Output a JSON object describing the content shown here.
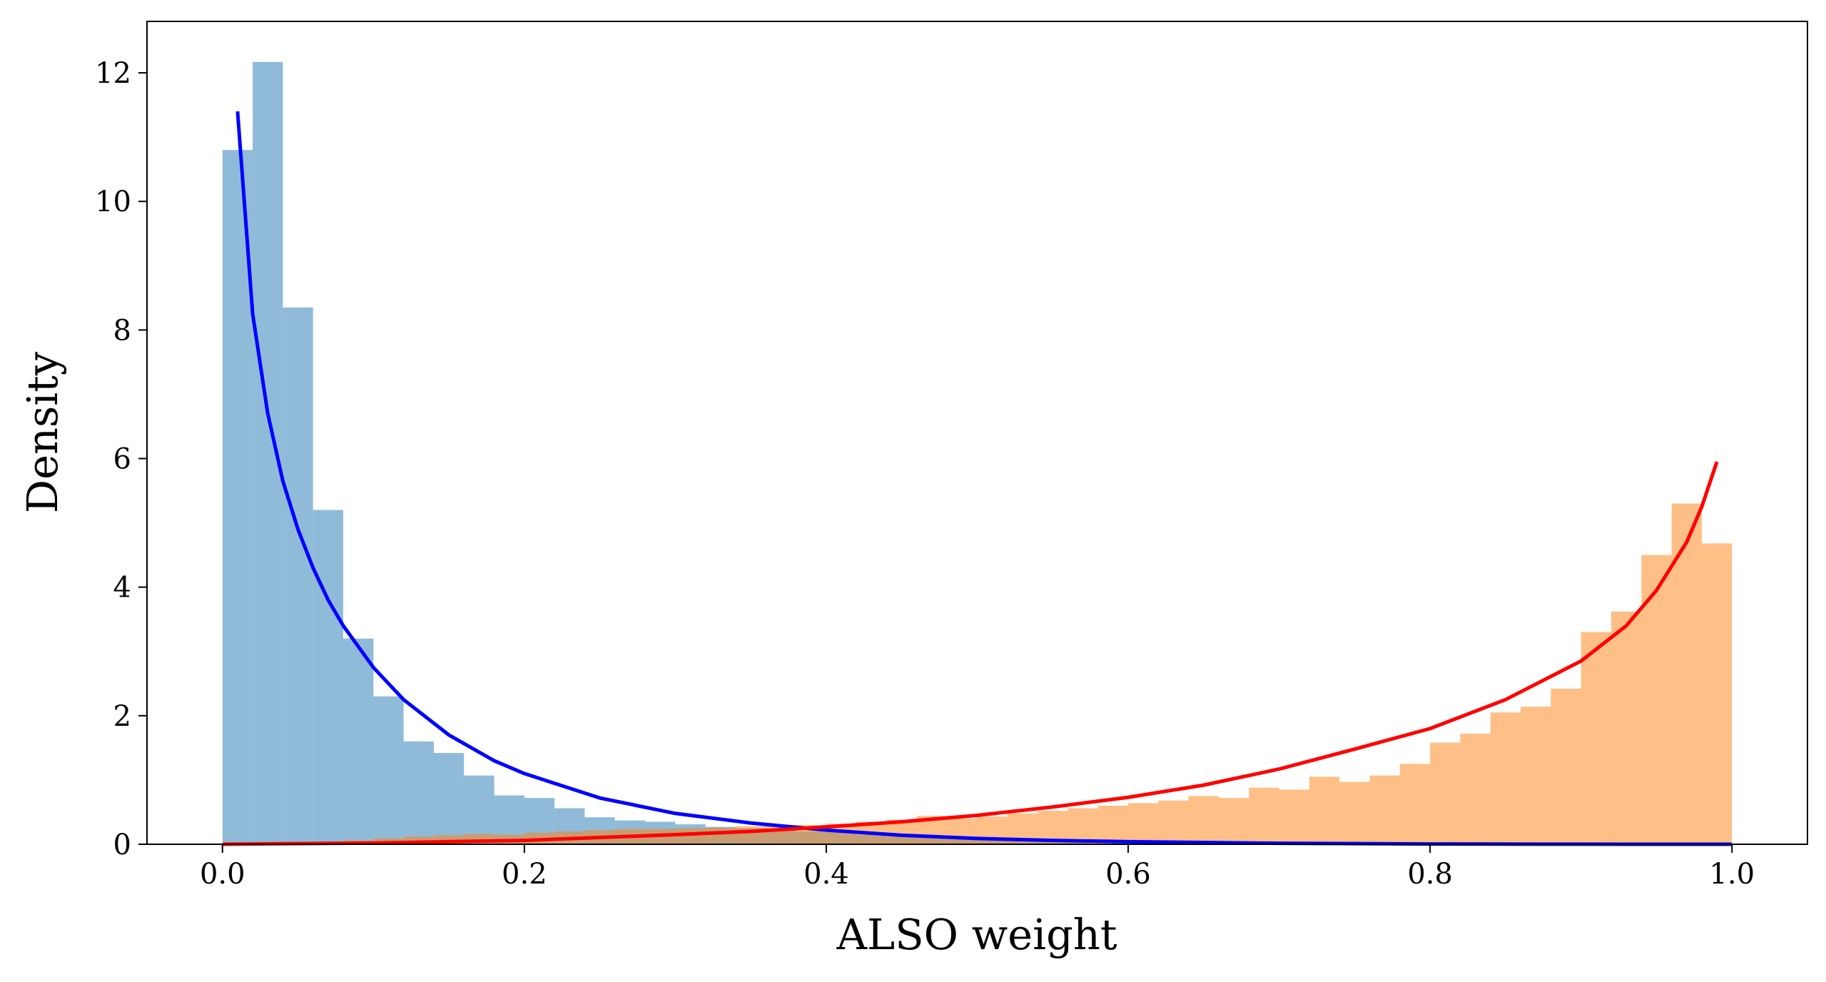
{
  "chart_data": {
    "type": "bar",
    "xlabel": "ALSO weight",
    "ylabel": "Density",
    "xlim": [
      -0.05,
      1.05
    ],
    "ylim": [
      0,
      12.8
    ],
    "x_ticks": [
      "0.0",
      "0.2",
      "0.4",
      "0.6",
      "0.8",
      "1.0"
    ],
    "y_ticks": [
      "0",
      "2",
      "4",
      "6",
      "8",
      "10",
      "12"
    ],
    "bin_edges": [
      0.0,
      0.02,
      0.04,
      0.06,
      0.08,
      0.1,
      0.12,
      0.14,
      0.16,
      0.18,
      0.2,
      0.22,
      0.24,
      0.26,
      0.28,
      0.3,
      0.32,
      0.34,
      0.36,
      0.38,
      0.4,
      0.42,
      0.44,
      0.46,
      0.48,
      0.5,
      0.52,
      0.54,
      0.56,
      0.58,
      0.6,
      0.62,
      0.64,
      0.66,
      0.68,
      0.7,
      0.72,
      0.74,
      0.76,
      0.78,
      0.8,
      0.82,
      0.84,
      0.86,
      0.88,
      0.9,
      0.92,
      0.94,
      0.96,
      0.98,
      1.0
    ],
    "histograms": [
      {
        "color": "#1f77b4",
        "alpha": 0.5,
        "values": [
          10.8,
          12.17,
          8.35,
          5.2,
          3.2,
          2.3,
          1.6,
          1.42,
          1.07,
          0.76,
          0.72,
          0.56,
          0.42,
          0.37,
          0.35,
          0.31,
          0.27,
          0.25,
          0.22,
          0.2,
          0.19,
          0.15,
          0.12,
          0.1,
          0.08,
          0.06,
          0.05,
          0.04,
          0.03,
          0.03,
          0.02,
          0.02,
          0.01,
          0.01,
          0.01,
          0.0,
          0.0,
          0.0,
          0.0,
          0.0,
          0.0,
          0.0,
          0.0,
          0.0,
          0.0,
          0.0,
          0.0,
          0.0,
          0.0,
          0.0
        ]
      },
      {
        "color": "#ff7f0e",
        "alpha": 0.5,
        "values": [
          0.0,
          0.01,
          0.02,
          0.03,
          0.06,
          0.09,
          0.12,
          0.14,
          0.16,
          0.15,
          0.18,
          0.2,
          0.22,
          0.24,
          0.24,
          0.25,
          0.26,
          0.28,
          0.3,
          0.3,
          0.32,
          0.35,
          0.38,
          0.44,
          0.4,
          0.43,
          0.48,
          0.52,
          0.56,
          0.6,
          0.64,
          0.68,
          0.75,
          0.72,
          0.88,
          0.85,
          1.05,
          0.97,
          1.07,
          1.25,
          1.58,
          1.72,
          2.05,
          2.14,
          2.42,
          3.3,
          3.62,
          4.5,
          5.3,
          4.68
        ]
      }
    ],
    "series": [
      {
        "color": "#0000ff",
        "x": [
          0.01,
          0.02,
          0.03,
          0.04,
          0.05,
          0.06,
          0.07,
          0.08,
          0.1,
          0.12,
          0.15,
          0.18,
          0.2,
          0.25,
          0.3,
          0.35,
          0.4,
          0.45,
          0.5,
          0.55,
          0.6,
          0.7,
          0.8,
          0.9,
          1.0
        ],
        "y": [
          11.4,
          8.25,
          6.7,
          5.65,
          4.9,
          4.3,
          3.8,
          3.4,
          2.75,
          2.25,
          1.7,
          1.3,
          1.1,
          0.72,
          0.48,
          0.33,
          0.22,
          0.14,
          0.09,
          0.06,
          0.04,
          0.015,
          0.004,
          0.001,
          0.0
        ]
      },
      {
        "color": "#ff0000",
        "x": [
          0.0,
          0.1,
          0.2,
          0.3,
          0.35,
          0.4,
          0.45,
          0.5,
          0.55,
          0.6,
          0.65,
          0.7,
          0.75,
          0.8,
          0.85,
          0.9,
          0.93,
          0.95,
          0.97,
          0.98,
          0.99
        ],
        "y": [
          0.0,
          0.02,
          0.06,
          0.15,
          0.2,
          0.27,
          0.35,
          0.45,
          0.58,
          0.73,
          0.92,
          1.17,
          1.48,
          1.8,
          2.25,
          2.85,
          3.4,
          3.95,
          4.7,
          5.25,
          5.95
        ]
      }
    ]
  }
}
